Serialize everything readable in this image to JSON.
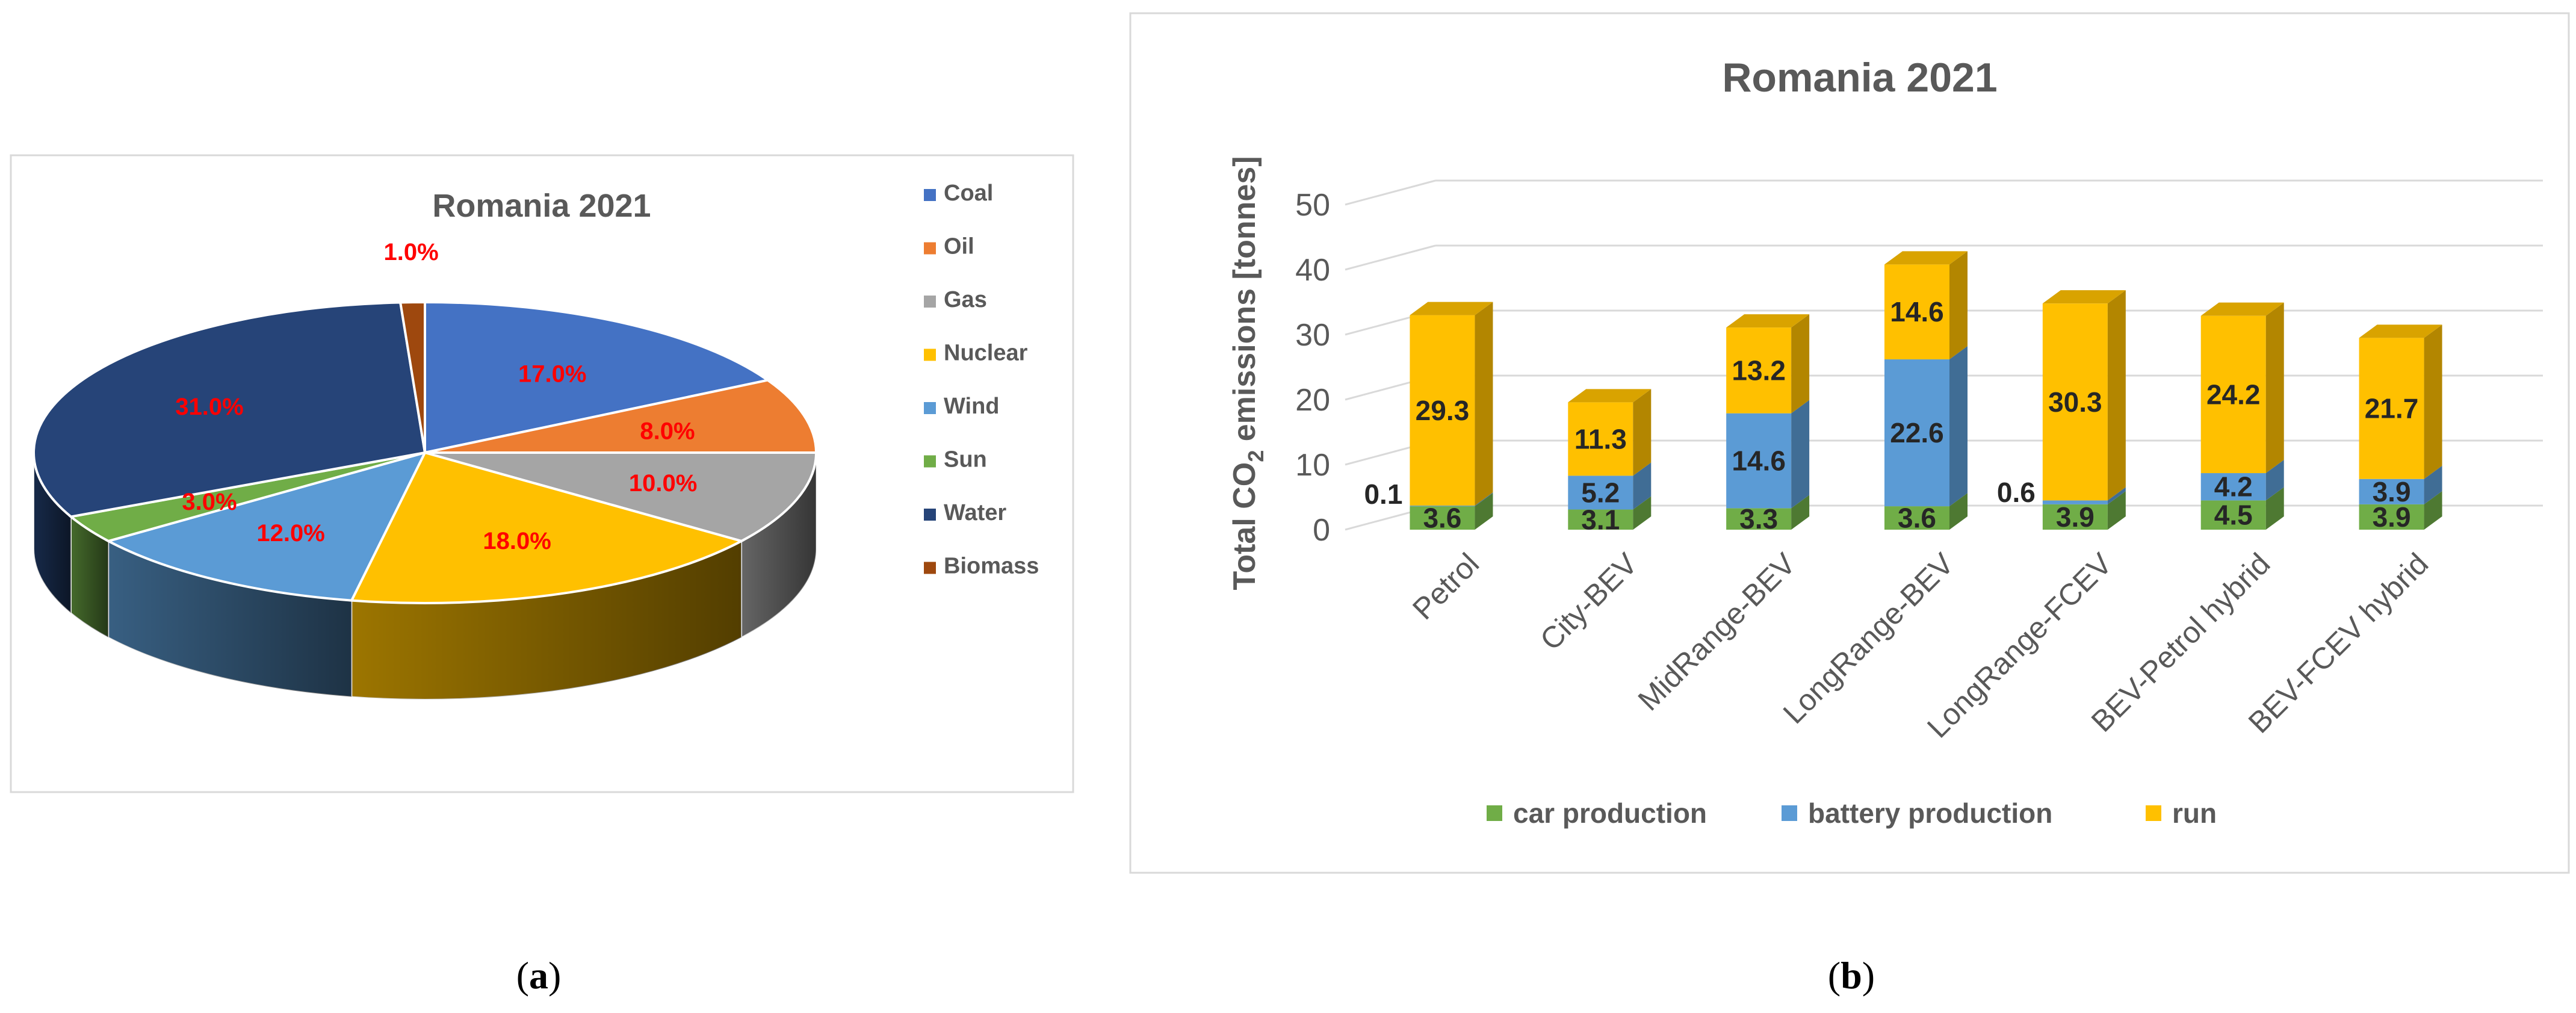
{
  "chart_data": [
    {
      "type": "pie",
      "title": "Romania 2021",
      "panel_label": "a",
      "categories": [
        "Coal",
        "Oil",
        "Gas",
        "Nuclear",
        "Wind",
        "Sun",
        "Water",
        "Biomass"
      ],
      "values": [
        17.0,
        8.0,
        10.0,
        18.0,
        12.0,
        3.0,
        31.0,
        1.0
      ],
      "data_labels": [
        "17.0%",
        "8.0%",
        "10.0%",
        "18.0%",
        "12.0%",
        "3.0%",
        "31.0%",
        "1.0%"
      ],
      "colors": [
        "#4472C4",
        "#ED7D31",
        "#A5A5A5",
        "#FFC000",
        "#5B9BD5",
        "#70AD47",
        "#264478",
        "#9E480E"
      ],
      "label_color": "#FF0000",
      "legend_position": "right",
      "style": "3d"
    },
    {
      "type": "bar",
      "stacked": true,
      "style": "3d",
      "title": "Romania 2021",
      "panel_label": "b",
      "ylabel_main": "Total CO",
      "ylabel_sub": "2",
      "ylabel_rest": " emissions [tonnes]",
      "xlabel": "",
      "ylim": [
        0,
        50
      ],
      "yticks": [
        "0",
        "10",
        "20",
        "30",
        "40",
        "50"
      ],
      "grid": true,
      "legend_position": "bottom",
      "categories": [
        "Petrol",
        "City-BEV",
        "MidRange-BEV",
        "LongRange-BEV",
        "LongRange-FCEV",
        "BEV-Petrol hybrid",
        "BEV-FCEV hybrid"
      ],
      "series": [
        {
          "name": "car production",
          "color": "#70AD47",
          "values": [
            3.6,
            3.1,
            3.3,
            3.6,
            3.9,
            4.5,
            3.9
          ],
          "labels": [
            "3.6",
            "3.1",
            "3.3",
            "3.6",
            "3.9",
            "4.5",
            "3.9"
          ]
        },
        {
          "name": "battery  production",
          "color": "#5B9BD5",
          "values": [
            0.1,
            5.2,
            14.6,
            22.6,
            0.6,
            4.2,
            3.9
          ],
          "labels": [
            "0.1",
            "5.2",
            "14.6",
            "22.6",
            "0.6",
            "4.2",
            "3.9"
          ]
        },
        {
          "name": "run",
          "color": "#FFC000",
          "values": [
            29.3,
            11.3,
            13.2,
            14.6,
            30.3,
            24.2,
            21.7
          ],
          "labels": [
            "29.3",
            "11.3",
            "13.2",
            "14.6",
            "30.3",
            "24.2",
            "21.7"
          ]
        }
      ]
    }
  ]
}
